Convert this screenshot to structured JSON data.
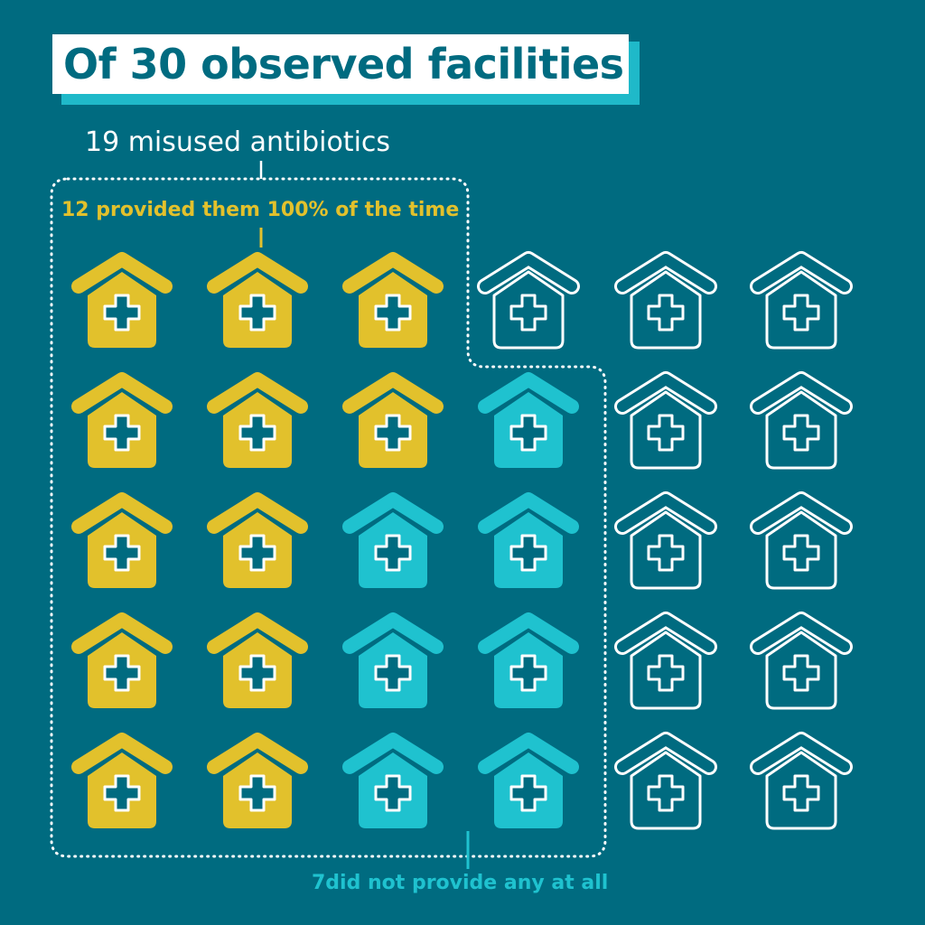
{
  "title": "Of 30 observed facilities",
  "annotations": {
    "misused": "19 misused antibiotics",
    "provided_always": "12 provided them 100% of the time",
    "not_provided": "7did not provide any at all"
  },
  "colors": {
    "background": "#006b80",
    "title_text": "#006b80",
    "title_shadow": "#1fb9c9",
    "always": "#e2c12c",
    "none": "#1fc2cf",
    "other_outline": "#ffffff"
  },
  "chart_data": {
    "type": "pictogram",
    "unit": "facility",
    "icon": "health-facility-house-icon",
    "total": 30,
    "rows": 5,
    "columns": 6,
    "groups": [
      {
        "key": "always",
        "label": "12 provided them 100% of the time",
        "count": 12,
        "color": "#e2c12c"
      },
      {
        "key": "none",
        "label": "7did not provide any at all",
        "count": 7,
        "color": "#1fc2cf"
      },
      {
        "key": "other",
        "label": "",
        "count": 11,
        "color": "outline"
      }
    ],
    "misused_total": 19,
    "grid": [
      [
        "always",
        "always",
        "always",
        "other",
        "other",
        "other"
      ],
      [
        "always",
        "always",
        "always",
        "none",
        "other",
        "other"
      ],
      [
        "always",
        "always",
        "none",
        "none",
        "other",
        "other"
      ],
      [
        "always",
        "always",
        "none",
        "none",
        "other",
        "other"
      ],
      [
        "always",
        "always",
        "none",
        "none",
        "other",
        "other"
      ]
    ]
  }
}
